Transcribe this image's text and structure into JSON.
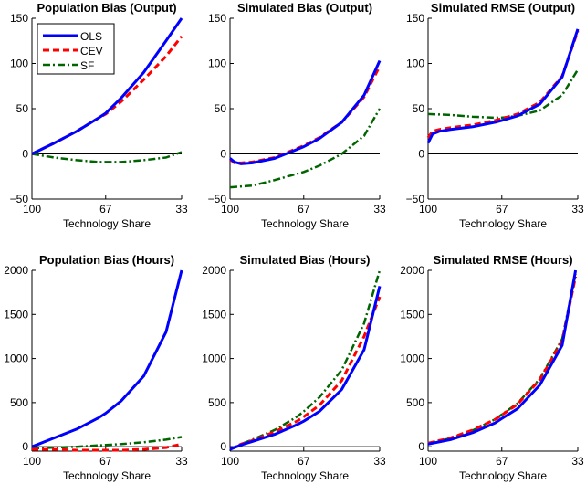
{
  "chart_data": [
    {
      "type": "line",
      "title": "Population Bias (Output)",
      "xlabel": "Technology Share",
      "ylabel": "",
      "xlim": [
        100,
        33
      ],
      "ylim": [
        -50,
        150
      ],
      "xticks": [
        "100",
        "67",
        "33"
      ],
      "yticks": [
        "-50",
        "0",
        "50",
        "100",
        "150"
      ],
      "zero_line": true,
      "legend": "top-left",
      "series": [
        {
          "name": "OLS",
          "x": [
            100,
            90,
            80,
            70,
            67,
            60,
            50,
            40,
            33
          ],
          "y": [
            0,
            12,
            25,
            40,
            45,
            62,
            90,
            125,
            150
          ]
        },
        {
          "name": "CEV",
          "x": [
            100,
            90,
            80,
            70,
            67,
            60,
            50,
            40,
            33
          ],
          "y": [
            0,
            12,
            25,
            40,
            44,
            58,
            82,
            108,
            130
          ]
        },
        {
          "name": "SF",
          "x": [
            100,
            90,
            80,
            70,
            67,
            60,
            50,
            40,
            33
          ],
          "y": [
            0,
            -4,
            -7,
            -9,
            -9,
            -9,
            -7,
            -4,
            2
          ]
        }
      ]
    },
    {
      "type": "line",
      "title": "Simulated Bias (Output)",
      "xlabel": "Technology Share",
      "ylabel": "",
      "xlim": [
        100,
        33
      ],
      "ylim": [
        -50,
        150
      ],
      "xticks": [
        "100",
        "67",
        "33"
      ],
      "yticks": [
        "-50",
        "0",
        "50",
        "100",
        "150"
      ],
      "zero_line": true,
      "series": [
        {
          "name": "OLS",
          "x": [
            100,
            98,
            95,
            90,
            80,
            75,
            70,
            67,
            60,
            50,
            40,
            33
          ],
          "y": [
            -5,
            -9,
            -11,
            -10,
            -5,
            0,
            5,
            8,
            17,
            35,
            65,
            103
          ]
        },
        {
          "name": "CEV",
          "x": [
            100,
            98,
            95,
            90,
            80,
            75,
            70,
            67,
            60,
            50,
            40,
            33
          ],
          "y": [
            -6,
            -10,
            -10,
            -9,
            -4,
            1,
            6,
            9,
            18,
            35,
            63,
            97
          ]
        },
        {
          "name": "SF",
          "x": [
            100,
            90,
            80,
            70,
            67,
            60,
            50,
            40,
            33
          ],
          "y": [
            -37,
            -35,
            -29,
            -22,
            -20,
            -13,
            0,
            20,
            50
          ]
        }
      ]
    },
    {
      "type": "line",
      "title": "Simulated RMSE (Output)",
      "xlabel": "Technology Share",
      "ylabel": "",
      "xlim": [
        100,
        33
      ],
      "ylim": [
        -50,
        150
      ],
      "xticks": [
        "100",
        "67",
        "33"
      ],
      "yticks": [
        "-50",
        "0",
        "50",
        "100",
        "150"
      ],
      "zero_line": true,
      "series": [
        {
          "name": "OLS",
          "x": [
            100,
            98,
            95,
            90,
            80,
            70,
            67,
            60,
            50,
            40,
            33
          ],
          "y": [
            12,
            22,
            25,
            27,
            30,
            35,
            37,
            42,
            55,
            85,
            138
          ]
        },
        {
          "name": "CEV",
          "x": [
            100,
            98,
            95,
            90,
            80,
            70,
            67,
            60,
            50,
            40,
            33
          ],
          "y": [
            18,
            25,
            27,
            29,
            32,
            37,
            39,
            44,
            57,
            86,
            136
          ]
        },
        {
          "name": "SF",
          "x": [
            100,
            90,
            80,
            70,
            67,
            60,
            50,
            40,
            33
          ],
          "y": [
            44,
            43,
            41,
            40,
            40,
            42,
            48,
            65,
            93
          ]
        }
      ]
    },
    {
      "type": "line",
      "title": "Population Bias (Hours)",
      "xlabel": "Technology Share",
      "ylabel": "",
      "xlim": [
        100,
        33
      ],
      "ylim": [
        -50,
        2000
      ],
      "xticks": [
        "100",
        "67",
        "33"
      ],
      "yticks": [
        "0",
        "500",
        "1000",
        "1500",
        "2000"
      ],
      "zero_line": true,
      "series": [
        {
          "name": "OLS",
          "x": [
            100,
            90,
            80,
            70,
            67,
            60,
            50,
            40,
            33
          ],
          "y": [
            0,
            100,
            200,
            330,
            380,
            520,
            800,
            1300,
            2000
          ]
        },
        {
          "name": "CEV",
          "x": [
            100,
            90,
            80,
            70,
            67,
            60,
            50,
            40,
            33
          ],
          "y": [
            -30,
            -30,
            -40,
            -40,
            -40,
            -40,
            -30,
            -10,
            30
          ]
        },
        {
          "name": "SF",
          "x": [
            100,
            90,
            80,
            70,
            67,
            60,
            50,
            40,
            33
          ],
          "y": [
            -20,
            -10,
            0,
            15,
            20,
            30,
            50,
            80,
            110
          ]
        }
      ]
    },
    {
      "type": "line",
      "title": "Simulated Bias (Hours)",
      "xlabel": "Technology Share",
      "ylabel": "",
      "xlim": [
        100,
        33
      ],
      "ylim": [
        -50,
        2000
      ],
      "xticks": [
        "100",
        "67",
        "33"
      ],
      "yticks": [
        "0",
        "500",
        "1000",
        "1500",
        "2000"
      ],
      "zero_line": true,
      "series": [
        {
          "name": "OLS",
          "x": [
            100,
            95,
            90,
            80,
            70,
            67,
            60,
            50,
            40,
            33
          ],
          "y": [
            -30,
            20,
            60,
            140,
            250,
            290,
            400,
            650,
            1100,
            1820
          ]
        },
        {
          "name": "CEV",
          "x": [
            100,
            95,
            90,
            80,
            70,
            67,
            60,
            50,
            40,
            33
          ],
          "y": [
            -30,
            30,
            70,
            170,
            290,
            340,
            470,
            750,
            1250,
            1700
          ]
        },
        {
          "name": "SF",
          "x": [
            100,
            95,
            90,
            80,
            70,
            67,
            60,
            50,
            40,
            33
          ],
          "y": [
            -30,
            30,
            80,
            190,
            340,
            400,
            560,
            870,
            1400,
            2000
          ]
        }
      ]
    },
    {
      "type": "line",
      "title": "Simulated RMSE (Hours)",
      "xlabel": "Technology Share",
      "ylabel": "",
      "xlim": [
        100,
        33
      ],
      "ylim": [
        -50,
        2000
      ],
      "xticks": [
        "100",
        "67",
        "33"
      ],
      "yticks": [
        "0",
        "500",
        "1000",
        "1500",
        "2000"
      ],
      "zero_line": false,
      "series": [
        {
          "name": "OLS",
          "x": [
            100,
            90,
            80,
            70,
            67,
            60,
            50,
            40,
            34
          ],
          "y": [
            30,
            80,
            160,
            270,
            320,
            430,
            700,
            1150,
            2000
          ]
        },
        {
          "name": "CEV",
          "x": [
            100,
            90,
            80,
            70,
            67,
            60,
            50,
            40,
            34
          ],
          "y": [
            40,
            100,
            190,
            310,
            360,
            480,
            760,
            1200,
            1930
          ]
        },
        {
          "name": "SF",
          "x": [
            100,
            90,
            80,
            70,
            67,
            60,
            50,
            40,
            34
          ],
          "y": [
            40,
            95,
            185,
            310,
            365,
            490,
            770,
            1220,
            1960
          ]
        }
      ]
    }
  ],
  "legend": [
    "OLS",
    "CEV",
    "SF"
  ],
  "colors": {
    "OLS": "#0000ff",
    "CEV": "#ff0000",
    "SF": "#006400"
  }
}
